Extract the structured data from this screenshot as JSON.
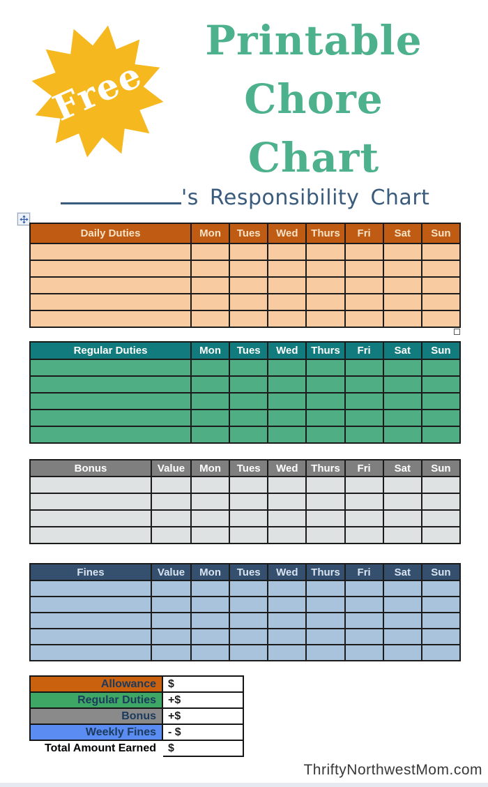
{
  "badge": {
    "label": "Free",
    "star_color": "#F5B81E",
    "text_color": "#FFFFFF"
  },
  "title": {
    "lines": [
      "Printable",
      "Chore",
      "Chart"
    ],
    "color": "#4CB18C"
  },
  "name_line": {
    "suffix": "'s Responsibility Chart",
    "color": "#3A5B7C"
  },
  "days": [
    "Mon",
    "Tues",
    "Wed",
    "Thurs",
    "Fri",
    "Sat",
    "Sun"
  ],
  "tables": {
    "daily": {
      "title": "Daily Duties",
      "value_header": null,
      "row_count": 5,
      "header_bg": "#BF5B12",
      "header_text": "#F8E3C6",
      "body_bg": "#F8CBA0"
    },
    "regular": {
      "title": "Regular Duties",
      "value_header": null,
      "row_count": 5,
      "header_bg": "#117B7D",
      "header_text": "#FFFFFF",
      "body_bg": "#4FAE84"
    },
    "bonus": {
      "title": "Bonus",
      "value_header": "Value",
      "row_count": 4,
      "header_bg": "#7F7F7F",
      "header_text": "#FFFFFF",
      "body_bg": "#DFE2E2"
    },
    "fines": {
      "title": "Fines",
      "value_header": "Value",
      "row_count": 5,
      "header_bg": "#34506E",
      "header_text": "#D8E4F2",
      "body_bg": "#A9C3DD"
    }
  },
  "summary": {
    "rows": [
      {
        "label": "Allowance",
        "value": "$",
        "bg": "#C9610E"
      },
      {
        "label": "Regular Duties",
        "value": "+$",
        "bg": "#3EA766"
      },
      {
        "label": "Bonus",
        "value": "+$",
        "bg": "#8A8A8A"
      },
      {
        "label": "Weekly Fines",
        "value": "- $",
        "bg": "#5A8CF2"
      },
      {
        "label": "Total Amount Earned",
        "value": "$",
        "bg": ""
      }
    ]
  },
  "footer": {
    "site": "ThriftyNorthwestMom.com"
  }
}
